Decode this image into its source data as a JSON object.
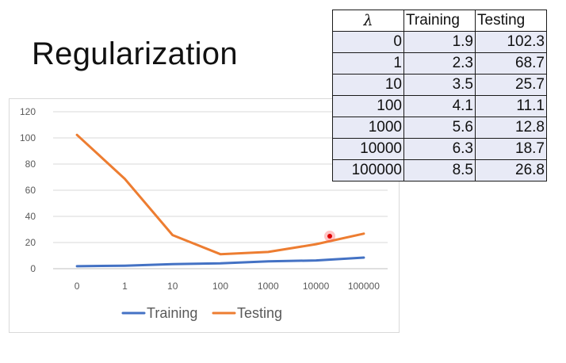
{
  "slide_title": "Regularization",
  "table": {
    "headers": [
      "λ",
      "Training",
      "Testing"
    ],
    "rows": [
      [
        "0",
        "1.9",
        "102.3"
      ],
      [
        "1",
        "2.3",
        "68.7"
      ],
      [
        "10",
        "3.5",
        "25.7"
      ],
      [
        "100",
        "4.1",
        "11.1"
      ],
      [
        "1000",
        "5.6",
        "12.8"
      ],
      [
        "10000",
        "6.3",
        "18.7"
      ],
      [
        "100000",
        "8.5",
        "26.8"
      ]
    ]
  },
  "chart_data": {
    "type": "line",
    "categories": [
      "0",
      "1",
      "10",
      "100",
      "1000",
      "10000",
      "100000"
    ],
    "series": [
      {
        "name": "Training",
        "values": [
          1.9,
          2.3,
          3.5,
          4.1,
          5.6,
          6.3,
          8.5
        ],
        "color": "#4472c4"
      },
      {
        "name": "Testing",
        "values": [
          102.3,
          68.7,
          25.7,
          11.1,
          12.8,
          18.7,
          26.8
        ],
        "color": "#ed7d31"
      }
    ],
    "title": "",
    "xlabel": "",
    "ylabel": "",
    "ylim": [
      0,
      120
    ],
    "yticks": [
      "0",
      "20",
      "40",
      "60",
      "80",
      "100",
      "120"
    ],
    "grid": true,
    "legend": "bottom"
  }
}
